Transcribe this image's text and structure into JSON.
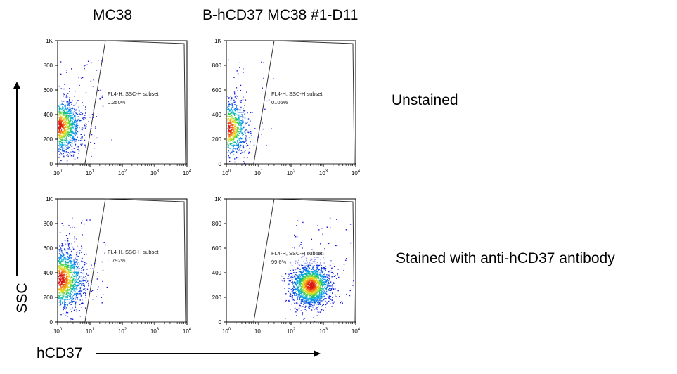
{
  "columns": [
    "MC38",
    "B-hCD37 MC38 #1-D11"
  ],
  "rows": [
    "Unstained",
    "Stained with anti-hCD37 antibody"
  ],
  "y_axis_label": "SSC",
  "x_axis_label": "hCD37",
  "chart_data": [
    {
      "type": "scatter",
      "title": "",
      "xlabel": "hCD37",
      "ylabel": "SSC",
      "xscale": "log",
      "xlim": [
        1,
        10000
      ],
      "ylim": [
        0,
        1000
      ],
      "xticks": [
        "10^0",
        "10^1",
        "10^2",
        "10^3",
        "10^4"
      ],
      "yticks": [
        "0",
        "200",
        "400",
        "600",
        "800",
        "1K"
      ],
      "gate": {
        "name": "FL4-H, SSC-H subset",
        "percent": "0.250%"
      },
      "population": {
        "x_center": 1.0,
        "y_center": 310,
        "x_spread_log": 0.35,
        "y_spread": 110,
        "n": 1800
      },
      "column": "MC38",
      "row": "Unstained"
    },
    {
      "type": "scatter",
      "title": "",
      "xlabel": "hCD37",
      "ylabel": "SSC",
      "xscale": "log",
      "xlim": [
        1,
        10000
      ],
      "ylim": [
        0,
        1000
      ],
      "xticks": [
        "10^0",
        "10^1",
        "10^2",
        "10^3",
        "10^4"
      ],
      "yticks": [
        "0",
        "200",
        "400",
        "600",
        "800",
        "1K"
      ],
      "gate": {
        "name": "FL4-H, SSC-H subset",
        "percent": "0106%"
      },
      "population": {
        "x_center": 1.1,
        "y_center": 290,
        "x_spread_log": 0.3,
        "y_spread": 110,
        "n": 1200
      },
      "column": "B-hCD37 MC38 #1-D11",
      "row": "Unstained"
    },
    {
      "type": "scatter",
      "title": "",
      "xlabel": "hCD37",
      "ylabel": "SSC",
      "xscale": "log",
      "xlim": [
        1,
        10000
      ],
      "ylim": [
        0,
        1000
      ],
      "xticks": [
        "10^0",
        "10^1",
        "10^2",
        "10^3",
        "10^4"
      ],
      "yticks": [
        "0",
        "200",
        "400",
        "600",
        "800",
        "1K"
      ],
      "gate": {
        "name": "FL4-H, SSC-H subset",
        "percent": "0.792%"
      },
      "population": {
        "x_center": 1.2,
        "y_center": 350,
        "x_spread_log": 0.35,
        "y_spread": 120,
        "n": 1800
      },
      "column": "MC38",
      "row": "Stained with anti-hCD37 antibody"
    },
    {
      "type": "scatter",
      "title": "",
      "xlabel": "hCD37",
      "ylabel": "SSC",
      "xscale": "log",
      "xlim": [
        1,
        10000
      ],
      "ylim": [
        0,
        1000
      ],
      "xticks": [
        "10^0",
        "10^1",
        "10^2",
        "10^3",
        "10^4"
      ],
      "yticks": [
        "0",
        "200",
        "400",
        "600",
        "800",
        "1K"
      ],
      "gate": {
        "name": "FL4-H, SSC-H subset",
        "percent": "99.6%"
      },
      "population": {
        "x_center": 400,
        "y_center": 300,
        "x_spread_log": 0.3,
        "y_spread": 80,
        "n": 1800
      },
      "column": "B-hCD37 MC38 #1-D11",
      "row": "Stained with anti-hCD37 antibody"
    }
  ]
}
